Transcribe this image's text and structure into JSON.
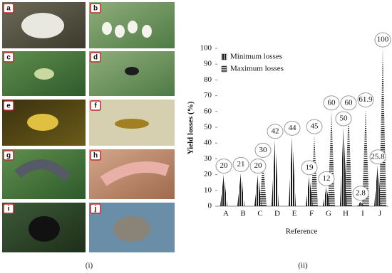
{
  "figure": {
    "panels": [
      "a",
      "b",
      "c",
      "d",
      "e",
      "f",
      "g",
      "h",
      "i",
      "j"
    ],
    "captions": [
      "(i)",
      "(ii)"
    ]
  },
  "chart_data": {
    "type": "spike",
    "y_label": "Yield losses (%)",
    "x_label": "Reference",
    "categories": [
      "A",
      "B",
      "C",
      "D",
      "E",
      "F",
      "G",
      "H",
      "I",
      "J"
    ],
    "series": [
      {
        "name": "Minimum losses",
        "color": "#1a1a1a",
        "values": [
          20,
          21,
          20,
          42,
          44,
          19,
          12,
          50,
          2.8,
          25.8
        ]
      },
      {
        "name": "Maximum losses",
        "color": "#2a2a2a",
        "values": [
          null,
          null,
          30,
          null,
          null,
          45,
          60,
          60,
          61.9,
          100
        ]
      }
    ],
    "ylim": [
      0,
      100
    ],
    "yticks": [
      0,
      10,
      20,
      30,
      40,
      50,
      60,
      70,
      80,
      90,
      100
    ],
    "legend": "upper left"
  }
}
